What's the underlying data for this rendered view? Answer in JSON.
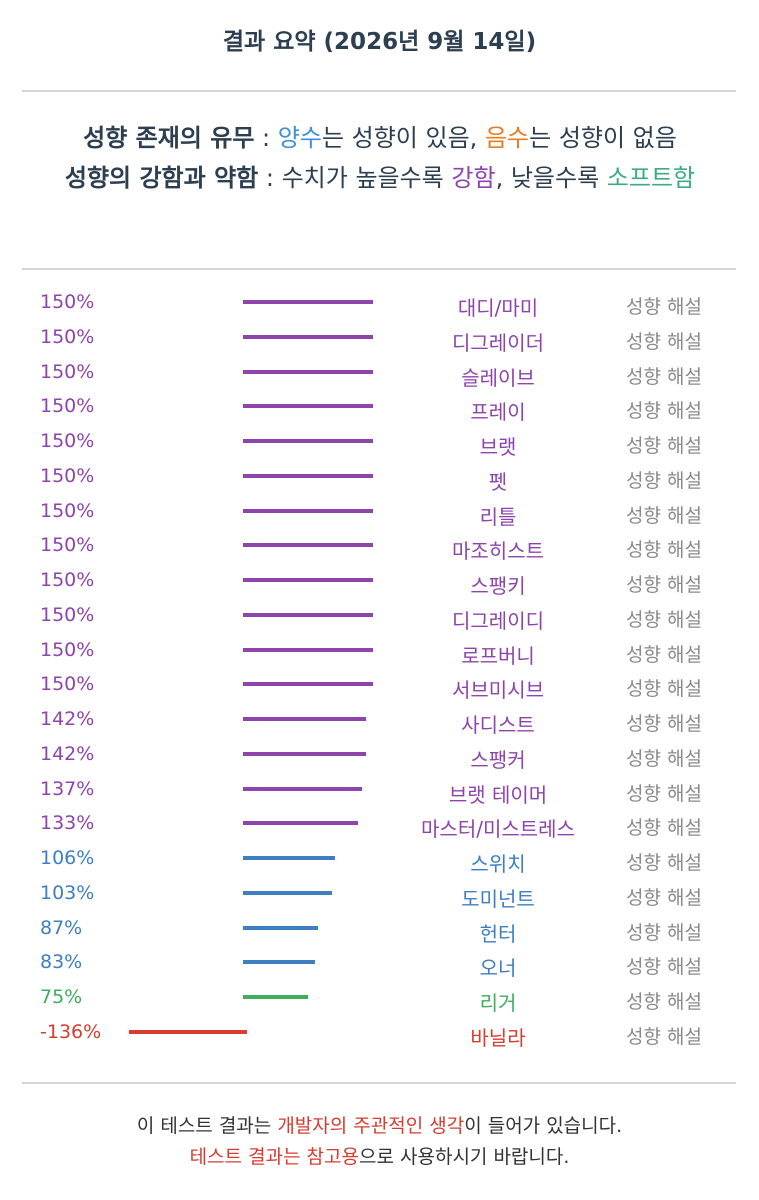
{
  "title": "결과 요약 (2026년 9월 14일)",
  "legend": {
    "line1": {
      "key": "성향 존재의 유무",
      "sep": " : ",
      "pos_word": "양수",
      "pos_text": "는 성향이 있음, ",
      "neg_word": "음수",
      "neg_text": "는 성향이 없음"
    },
    "line2": {
      "key": "성향의 강함과 약함",
      "sep": " : ",
      "text1": "수치가 높을수록 ",
      "strong_word": "강함",
      "text2": ", 낮을수록 ",
      "soft_word": "소프트함"
    }
  },
  "explain_label": "성향 해설",
  "colors": {
    "purple": "#8e44ad",
    "blue": "#3d7fc1",
    "green": "#3fae5b",
    "red": "#d63c2f",
    "gray": "#8a8a8a"
  },
  "chart_data": {
    "type": "bar",
    "categories": [
      "대디/마미",
      "디그레이더",
      "슬레이브",
      "프레이",
      "브랫",
      "펫",
      "리틀",
      "마조히스트",
      "스팽키",
      "디그레이디",
      "로프버니",
      "서브미시브",
      "사디스트",
      "스팽커",
      "브랫 테이머",
      "마스터/미스트레스",
      "스위치",
      "도미넌트",
      "헌터",
      "오너",
      "리거",
      "바닐라"
    ],
    "labels": [
      "150%",
      "150%",
      "150%",
      "150%",
      "150%",
      "150%",
      "150%",
      "150%",
      "150%",
      "150%",
      "150%",
      "150%",
      "142%",
      "142%",
      "137%",
      "133%",
      "106%",
      "103%",
      "87%",
      "83%",
      "75%",
      "-136%"
    ],
    "values": [
      150,
      150,
      150,
      150,
      150,
      150,
      150,
      150,
      150,
      150,
      150,
      150,
      142,
      142,
      137,
      133,
      106,
      103,
      87,
      83,
      75,
      -136
    ],
    "colors": [
      "purple",
      "purple",
      "purple",
      "purple",
      "purple",
      "purple",
      "purple",
      "purple",
      "purple",
      "purple",
      "purple",
      "purple",
      "purple",
      "purple",
      "purple",
      "purple",
      "blue",
      "blue",
      "blue",
      "blue",
      "green",
      "red"
    ]
  },
  "footer": {
    "line1_a": "이 테스트 결과는 ",
    "line1_highlight": "개발자의 주관적인 생각",
    "line1_b": "이 들어가 있습니다.",
    "line2_highlight": "테스트 결과는 참고용",
    "line2_b": "으로 사용하시기 바랍니다."
  }
}
